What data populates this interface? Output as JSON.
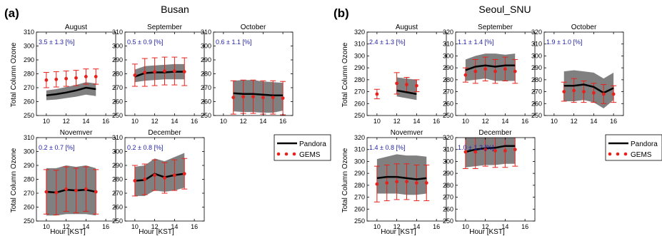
{
  "figure": {
    "colors": {
      "axis": "#000000",
      "band": "#808080",
      "pandora": "#000000",
      "gems": "#e8201c",
      "annotation": "#1f1fa8"
    },
    "legend": {
      "pandora_label": "Pandora",
      "gems_label": "GEMS"
    }
  },
  "chart_data": [
    {
      "id": "busan",
      "label": "(a)",
      "site_title": "Busan",
      "type": "line",
      "ylabel": "Total Column Ozone",
      "xlabel": "Hour [KST]",
      "xlim": [
        9,
        17
      ],
      "xticks": [
        10,
        12,
        14,
        16
      ],
      "ylim": [
        250,
        310
      ],
      "yticks": [
        250,
        260,
        270,
        280,
        290,
        300,
        310
      ],
      "panels": [
        {
          "title": "August",
          "annotation": "3.5 ± 1.3 [%]",
          "pandora": {
            "x": [
              10,
              11,
              12,
              13,
              14,
              15
            ],
            "y": [
              264.5,
              265.3,
              266.5,
              268,
              270,
              269
            ]
          },
          "band": {
            "x": [
              10,
              11,
              12,
              13,
              14,
              15
            ],
            "lower": [
              261,
              261.5,
              262.5,
              263.5,
              265,
              264
            ],
            "upper": [
              268,
              269,
              270.5,
              272,
              274,
              273
            ]
          },
          "gems": {
            "x": [
              10,
              11,
              12,
              13,
              14,
              15
            ],
            "y": [
              275.5,
              276,
              276.5,
              277,
              278,
              278
            ],
            "err": [
              5.5,
              5.5,
              5.5,
              5.5,
              5.5,
              5.5
            ]
          }
        },
        {
          "title": "September",
          "annotation": "0.5 ± 0.9 [%]",
          "pandora": {
            "x": [
              10,
              11,
              12,
              13,
              14,
              15
            ],
            "y": [
              278,
              280.5,
              281,
              281,
              281.5,
              281.5
            ]
          },
          "band": {
            "x": [
              10,
              11,
              12,
              13,
              14,
              15
            ],
            "lower": [
              274,
              275,
              275.5,
              276,
              276,
              276
            ],
            "upper": [
              283,
              285.5,
              286,
              286.5,
              287,
              287
            ]
          },
          "gems": {
            "x": [
              10,
              11,
              12,
              13,
              14,
              15
            ],
            "y": [
              279,
              281,
              281.5,
              282,
              282,
              281.5
            ],
            "err": [
              8,
              10,
              10,
              10,
              10,
              10
            ]
          }
        },
        {
          "title": "October",
          "annotation": "0.6 ± 1.1 [%]",
          "pandora": {
            "x": [
              11,
              12,
              13,
              14,
              15,
              16
            ],
            "y": [
              266,
              265.5,
              265.5,
              265,
              264.5,
              264.5
            ]
          },
          "band": {
            "x": [
              11,
              12,
              13,
              14,
              15,
              16
            ],
            "lower": [
              253,
              252.5,
              252.5,
              252,
              252,
              253.5
            ],
            "upper": [
              275,
              275.5,
              275.5,
              274.5,
              274,
              273.5
            ]
          },
          "gems": {
            "x": [
              11,
              12,
              13,
              14,
              15,
              16
            ],
            "y": [
              263,
              263.5,
              263.5,
              263,
              263,
              262.5
            ],
            "err": [
              12,
              12,
              12,
              12,
              12,
              12
            ]
          }
        },
        {
          "title": "Novemver",
          "annotation": "0.2 ± 0.7 [%]",
          "pandora": {
            "x": [
              10,
              11,
              12,
              13,
              14,
              15
            ],
            "y": [
              271,
              270.5,
              272.5,
              272,
              272.5,
              271
            ]
          },
          "band": {
            "x": [
              10,
              11,
              12,
              13,
              14,
              15
            ],
            "lower": [
              254,
              254,
              255,
              255,
              255,
              254
            ],
            "upper": [
              288,
              288,
              290,
              289,
              290,
              288
            ]
          },
          "gems": {
            "x": [
              10,
              11,
              12,
              13,
              14,
              15
            ],
            "y": [
              271,
              270.5,
              273,
              272,
              273,
              271
            ],
            "err": [
              16,
              16,
              16,
              16,
              16,
              16
            ]
          }
        },
        {
          "title": "December",
          "annotation": "0.2 ± 0.8 [%]",
          "pandora": {
            "x": [
              10,
              11,
              12,
              13,
              14,
              15
            ],
            "y": [
              279,
              279.5,
              284,
              281.5,
              283,
              284
            ]
          },
          "band": {
            "x": [
              10,
              11,
              12,
              13,
              14,
              15
            ],
            "lower": [
              268,
              268,
              272,
              271,
              272,
              274
            ],
            "upper": [
              289,
              290,
              295,
              293,
              296,
              299
            ]
          },
          "gems": {
            "x": [
              10,
              11,
              12,
              13,
              14,
              15
            ],
            "y": [
              279,
              280,
              283,
              281,
              283,
              284
            ],
            "err": [
              11,
              11,
              11,
              11,
              11,
              11
            ]
          }
        }
      ]
    },
    {
      "id": "seoul",
      "label": "(b)",
      "site_title": "Seoul_SNU",
      "type": "line",
      "ylabel": "Total Column Ozone",
      "xlabel": "Hour [KST]",
      "xlim": [
        9,
        17
      ],
      "xticks": [
        10,
        12,
        14,
        16
      ],
      "ylim": [
        250,
        320
      ],
      "yticks": [
        250,
        260,
        270,
        280,
        290,
        300,
        310,
        320
      ],
      "panels": [
        {
          "title": "August",
          "annotation": "2.4 ± 1.3 [%]",
          "pandora": {
            "x": [
              12,
              13,
              14
            ],
            "y": [
              271,
              269.5,
              268
            ]
          },
          "band": {
            "x": [
              12,
              13,
              14
            ],
            "lower": [
              266,
              264.5,
              263
            ],
            "upper": [
              282,
              281,
              280
            ]
          },
          "gems": {
            "x": [
              10,
              12,
              13,
              14
            ],
            "y": [
              268,
              277,
              276,
              275
            ],
            "err": [
              4,
              9,
              6,
              5
            ]
          }
        },
        {
          "title": "September",
          "annotation": "1.1 ± 1.4 [%]",
          "pandora": {
            "x": [
              10,
              11,
              12,
              13,
              14,
              15
            ],
            "y": [
              288,
              291,
              292,
              291,
              292,
              292
            ]
          },
          "band": {
            "x": [
              10,
              11,
              12,
              13,
              14,
              15
            ],
            "lower": [
              279,
              280,
              281,
              279,
              279,
              279
            ],
            "upper": [
              297,
              300,
              302,
              302,
              301,
              302
            ]
          },
          "gems": {
            "x": [
              10,
              11,
              12,
              13,
              14,
              15
            ],
            "y": [
              284,
              287,
              289,
              287,
              289,
              287
            ],
            "err": [
              6,
              10,
              10,
              10,
              10,
              10
            ]
          }
        },
        {
          "title": "October",
          "annotation": "1.9 ± 1.0 [%]",
          "pandora": {
            "x": [
              11,
              12,
              13,
              14,
              15,
              16
            ],
            "y": [
              275,
              275,
              276,
              274,
              269,
              273
            ]
          },
          "band": {
            "x": [
              11,
              12,
              13,
              14,
              15,
              16
            ],
            "lower": [
              262,
              262,
              263,
              261,
              256,
              263
            ],
            "upper": [
              287,
              288,
              287,
              286,
              281,
              286
            ]
          },
          "gems": {
            "x": [
              11,
              12,
              13,
              14,
              15,
              16
            ],
            "y": [
              270,
              271,
              270,
              269,
              268,
              268
            ],
            "err": [
              8,
              10,
              9,
              8,
              8,
              7
            ]
          }
        },
        {
          "title": "Novemver",
          "annotation": "1.4 ± 0.8 [%]",
          "pandora": {
            "x": [
              10,
              11,
              12,
              13,
              14,
              15
            ],
            "y": [
              286,
              287,
              287,
              286,
              285,
              286
            ]
          },
          "band": {
            "x": [
              10,
              11,
              12,
              13,
              14,
              15
            ],
            "lower": [
              273,
              273,
              273,
              272,
              272,
              273
            ],
            "upper": [
              302,
              304,
              306,
              305,
              305,
              304
            ]
          },
          "gems": {
            "x": [
              10,
              11,
              12,
              13,
              14,
              15
            ],
            "y": [
              281,
              282,
              283,
              283,
              282,
              282
            ],
            "err": [
              15,
              15,
              15,
              15,
              15,
              15
            ]
          }
        },
        {
          "title": "December",
          "annotation": "1.0 ± 1.2 [%]",
          "pandora": {
            "x": [
              10,
              11,
              12,
              13,
              14,
              15
            ],
            "y": [
              308,
              310,
              311,
              311.5,
              313,
              313
            ]
          },
          "band": {
            "x": [
              10,
              11,
              12,
              13,
              14,
              15
            ],
            "lower": [
              295,
              296,
              297,
              297,
              298,
              298
            ],
            "upper": [
              320,
              322,
              324,
              326,
              329,
              330
            ]
          },
          "gems": {
            "x": [
              10,
              11,
              12,
              13,
              14,
              15
            ],
            "y": [
              308,
              308,
              310,
              309,
              309,
              310
            ],
            "err": [
              14,
              14,
              14,
              14,
              14,
              14
            ]
          }
        }
      ]
    }
  ]
}
